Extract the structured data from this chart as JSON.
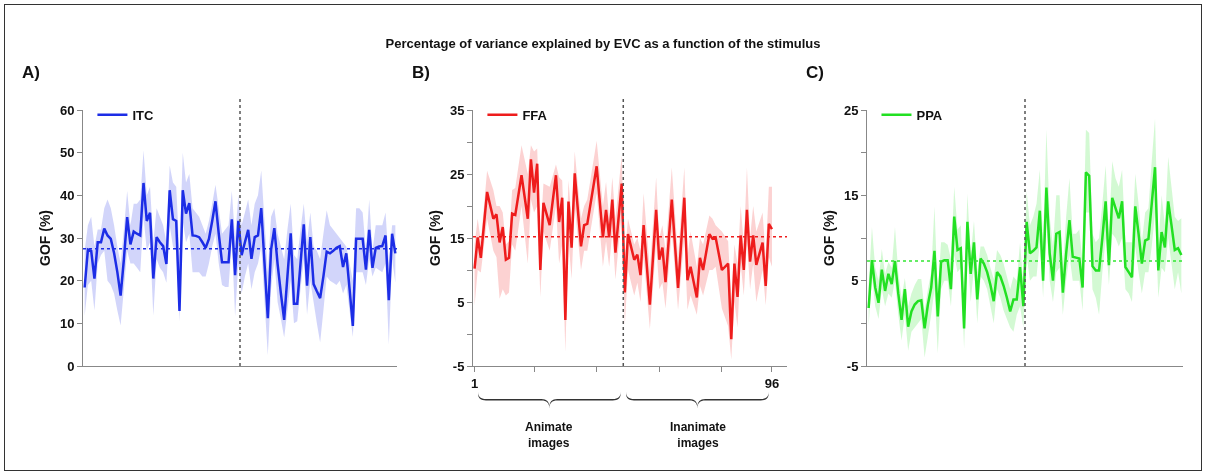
{
  "chart_data": [
    {
      "type": "line",
      "annotations": [
        "A)"
      ],
      "ylabel": "GOF (%)",
      "legend": "top left",
      "tick_labels": "y",
      "categories": [
        null,
        null,
        null,
        null,
        null,
        null,
        null,
        null,
        null,
        null,
        null,
        null,
        null,
        null,
        null,
        null,
        null,
        null,
        null,
        null,
        null,
        null,
        null,
        null,
        null,
        null,
        null,
        null,
        null,
        null,
        null,
        null,
        null,
        null,
        null,
        null,
        null,
        null,
        null,
        null,
        null,
        null,
        null,
        null,
        null,
        null,
        null,
        null,
        null,
        null,
        null,
        null,
        null,
        null,
        null,
        null,
        null,
        null,
        null,
        null,
        null,
        null,
        null,
        null,
        null,
        null,
        null,
        null,
        null,
        null,
        null,
        null,
        null,
        null,
        null,
        null,
        null,
        null,
        null,
        null,
        null,
        null,
        null,
        null,
        null,
        null,
        null,
        null,
        null,
        null,
        null,
        null,
        null,
        null,
        null,
        null
      ],
      "ylim": [
        0,
        60
      ],
      "yticks": [
        0,
        10,
        20,
        30,
        40,
        50,
        60
      ],
      "ref_lines": [
        {
          "axis": "y",
          "value": 27.5,
          "color": "#1c2de6",
          "line_style": "dotted"
        }
      ],
      "series": [
        {
          "name": "ITC",
          "color": "#1c2de6",
          "values": [
            18.4,
            27.3,
            27,
            20.5,
            29,
            29,
            32.2,
            30.6,
            29.8,
            26.5,
            22,
            16.5,
            25,
            34.9,
            28.5,
            31.5,
            31,
            30.6,
            42.9,
            34,
            35.9,
            20.5,
            30.2,
            29,
            28.1,
            23.9,
            41.2,
            34.4,
            34,
            12.9,
            41.2,
            35.7,
            38.2,
            30.6,
            30.5,
            30.2,
            29,
            27.7,
            29.8,
            34,
            38.6,
            31,
            24.3,
            24.3,
            24.3,
            34.4,
            21.3,
            34,
            26,
            29,
            31.9,
            25.1,
            30.2,
            30.6,
            37,
            24,
            11.2,
            27.3,
            32.3,
            23.9,
            17,
            10.8,
            21,
            31.1,
            14.6,
            14.6,
            24,
            33.2,
            18.8,
            30.2,
            19.2,
            17.5,
            15.9,
            21,
            26.8,
            26.4,
            27,
            27.7,
            28.1,
            23.2,
            26.4,
            18,
            9.4,
            29.8,
            29.8,
            29.8,
            22.6,
            31.9,
            23,
            27.7,
            28,
            28.1,
            30.6,
            15.4,
            31,
            26.4
          ],
          "lower": [
            11.7,
            19,
            20,
            13,
            24,
            26,
            27,
            20,
            19,
            17,
            13,
            9.5,
            18,
            27,
            24,
            24,
            23,
            22,
            35,
            27,
            29,
            11.8,
            25,
            23,
            22,
            19.5,
            33,
            28,
            27,
            10.5,
            34,
            29,
            31,
            22,
            22,
            22,
            21,
            21,
            24,
            28,
            31,
            24,
            19,
            18.5,
            18.5,
            29,
            11.6,
            24,
            17,
            21,
            24,
            18,
            22,
            24,
            28,
            15,
            2.5,
            18,
            25,
            15,
            11,
            6.7,
            13,
            20,
            10,
            10.5,
            18,
            25,
            12,
            20,
            15,
            10,
            5.5,
            13,
            21,
            20,
            19.5,
            19,
            20,
            17,
            19,
            13,
            6.8,
            22,
            22,
            22,
            19,
            25,
            21,
            23,
            22.5,
            22,
            24,
            5,
            25,
            19.5
          ],
          "upper": [
            27,
            33,
            35,
            28,
            32,
            32,
            37,
            39,
            37,
            33,
            28,
            24,
            32,
            41,
            33,
            38,
            38,
            39,
            50.5,
            40,
            42,
            29,
            37,
            35,
            33,
            29,
            47,
            43,
            42,
            26,
            50,
            43,
            45,
            37,
            36,
            35,
            33,
            31,
            34,
            38,
            42.5,
            37,
            31,
            32,
            33,
            41,
            30,
            40,
            33,
            36,
            39,
            33,
            38,
            40,
            45.8,
            34,
            22,
            35,
            37,
            31,
            28,
            25,
            32,
            38,
            26,
            25,
            32,
            38,
            29,
            36,
            28,
            27,
            25,
            31,
            36.5,
            33,
            32,
            31,
            30,
            29,
            28,
            24,
            20,
            37,
            37,
            36,
            27,
            39,
            27,
            33,
            33,
            33,
            36,
            24,
            33,
            33
          ]
        }
      ]
    },
    {
      "type": "line",
      "title": "Percentage of variance explained by EVC as a function of the stimulus",
      "annotations": [
        "B)",
        "Animate images",
        "Inanimate images"
      ],
      "ylabel": "GOF (%)",
      "legend": "top left",
      "xlim": [
        0.5,
        100.8
      ],
      "xticks": [
        1,
        {
          "value": 20,
          "label": null
        },
        {
          "value": 40,
          "label": null
        },
        {
          "value": 60,
          "label": null
        },
        {
          "value": 80,
          "label": null
        },
        96
      ],
      "ylim": [
        -5,
        35
      ],
      "yticks": [
        -5,
        {
          "value": 0,
          "label": null
        },
        5,
        {
          "value": 10,
          "label": null
        },
        15,
        {
          "value": 20,
          "label": null
        },
        25,
        {
          "value": 30,
          "label": null
        },
        35
      ],
      "ref_lines": [
        {
          "axis": "y",
          "value": 15.2,
          "color": "#ee1c1c",
          "line_style": "dotted"
        },
        {
          "axis": "x",
          "value": 48.5,
          "color": "#555555",
          "line_style": "dotted"
        }
      ],
      "series": [
        {
          "name": "FFA",
          "color": "#ee1c1c",
          "x": [
            1,
            2,
            3,
            5,
            7,
            8,
            9,
            10,
            11,
            12,
            13,
            14,
            16,
            18,
            19,
            20,
            21,
            22,
            23,
            25,
            27,
            28,
            29,
            30,
            31,
            32,
            33,
            35,
            36,
            37,
            40,
            42,
            43,
            44,
            45,
            46,
            48,
            49,
            50,
            52,
            53,
            54,
            55,
            57,
            59,
            60,
            61,
            62,
            64,
            66,
            68,
            69,
            70,
            72,
            73,
            74,
            76,
            77,
            78,
            80,
            82,
            83,
            84,
            85,
            86,
            87,
            88,
            89,
            90,
            91,
            93,
            94,
            95,
            96
          ],
          "values": [
            10.2,
            15.1,
            11.9,
            22.2,
            18,
            18.7,
            14.3,
            16.7,
            11.6,
            11.9,
            18.8,
            18.6,
            24.8,
            18,
            27.3,
            22.1,
            26.6,
            10,
            20.5,
            17,
            24.8,
            17.5,
            21.3,
            2.2,
            20.7,
            13.5,
            25.1,
            13.7,
            17,
            17.2,
            26.2,
            15.1,
            19.4,
            15.1,
            21,
            12.7,
            23.5,
            6.5,
            15.6,
            11.6,
            12.4,
            9.2,
            17,
            4.6,
            19.4,
            11.6,
            13.5,
            8.1,
            21,
            7.2,
            21.3,
            8.4,
            10.5,
            5.7,
            11.9,
            10,
            15.6,
            14.9,
            15.1,
            10,
            11,
            -0.8,
            11,
            5.8,
            15.4,
            10,
            19.4,
            11.3,
            15.4,
            10.8,
            14.3,
            7.5,
            17.2,
            16.4
          ],
          "lower": [
            4.4,
            10,
            9.6,
            18,
            13,
            12,
            5.5,
            7,
            6,
            6.5,
            14,
            13,
            20,
            11,
            21,
            19,
            20,
            5.8,
            16,
            13,
            20,
            11,
            14,
            -2.8,
            14.5,
            8.6,
            20,
            10,
            13,
            13,
            22,
            10.5,
            14.5,
            10.5,
            16,
            8.5,
            19,
            1.4,
            10,
            6,
            8,
            5,
            12,
            0.8,
            14,
            7,
            8,
            4,
            16,
            3.8,
            15,
            3.8,
            6,
            3,
            7.5,
            6,
            10,
            10,
            10.5,
            4,
            1.2,
            -4,
            5,
            1,
            11,
            6,
            14.5,
            7,
            11,
            5,
            10,
            4.5,
            12,
            10.5
          ],
          "upper": [
            14,
            18,
            14.5,
            25.5,
            22.5,
            20,
            20,
            19,
            14,
            14.5,
            22.5,
            22.8,
            29.5,
            25,
            29.5,
            28.5,
            29,
            15,
            23.5,
            23,
            26.5,
            24.5,
            24,
            10,
            24,
            18,
            28.5,
            18,
            20,
            21,
            30.2,
            20,
            23.8,
            18,
            24.5,
            18,
            27.9,
            12,
            18,
            14,
            15,
            13,
            22,
            10,
            24.5,
            15,
            17,
            13,
            26,
            12,
            26,
            12,
            16,
            10.5,
            15,
            14,
            18.5,
            18,
            17,
            16,
            14.5,
            5,
            14,
            11,
            20,
            14,
            26,
            15,
            20,
            16,
            19,
            12,
            23,
            23
          ]
        }
      ]
    },
    {
      "type": "line",
      "annotations": [
        "C)"
      ],
      "ylabel": "GOF (%)",
      "legend": "top left",
      "tick_labels": "y",
      "categories": [
        null,
        null,
        null,
        null,
        null,
        null,
        null,
        null,
        null,
        null,
        null,
        null,
        null,
        null,
        null,
        null,
        null,
        null,
        null,
        null,
        null,
        null,
        null,
        null,
        null,
        null,
        null,
        null,
        null,
        null,
        null,
        null,
        null,
        null,
        null,
        null,
        null,
        null,
        null,
        null,
        null,
        null,
        null,
        null,
        null,
        null,
        null,
        null,
        null,
        null,
        null,
        null,
        null,
        null,
        null,
        null,
        null,
        null,
        null,
        null,
        null,
        null,
        null,
        null,
        null,
        null,
        null,
        null,
        null,
        null,
        null,
        null,
        null,
        null,
        null,
        null,
        null,
        null,
        null,
        null,
        null,
        null,
        null,
        null,
        null,
        null,
        null,
        null,
        null,
        null,
        null,
        null,
        null,
        null,
        null,
        null
      ],
      "ylim": [
        -5,
        25
      ],
      "yticks": [
        -5,
        {
          "value": 0,
          "label": null
        },
        5,
        {
          "value": 10,
          "label": null
        },
        15,
        {
          "value": 20,
          "label": null
        },
        25
      ],
      "ref_lines": [
        {
          "axis": "y",
          "value": 7.3,
          "color": "#33e633",
          "line_style": "dotted"
        }
      ],
      "series": [
        {
          "name": "PPA",
          "color": "#22e022",
          "values": [
            1.8,
            7.4,
            4.2,
            2.4,
            6.3,
            3.8,
            5.8,
            4.6,
            7.3,
            3.5,
            0.4,
            4,
            -0.4,
            1.4,
            2.2,
            2.6,
            2.7,
            -0.6,
            2.2,
            4.2,
            8.5,
            0.8,
            7.2,
            7.4,
            7.4,
            4,
            12.5,
            8.6,
            8.8,
            -0.6,
            11.9,
            5.8,
            9.5,
            2.8,
            7.6,
            7,
            6,
            4.5,
            2.6,
            6,
            5.5,
            4.4,
            3,
            1.4,
            2.8,
            2.8,
            6.6,
            2,
            11.9,
            8.2,
            8.5,
            8.9,
            13.2,
            5,
            15.9,
            8.2,
            5,
            10.5,
            10.7,
            3.6,
            8.2,
            12.1,
            7.8,
            7.7,
            7.6,
            4.2,
            17.7,
            17.3,
            6.7,
            6.2,
            6.2,
            10,
            14.3,
            6.8,
            14.7,
            13.5,
            12.3,
            14.3,
            6.6,
            6,
            5.4,
            13.7,
            10.5,
            7,
            9.7,
            9.9,
            14,
            18.3,
            6.2,
            10.7,
            8.9,
            14.3,
            11.5,
            8.6,
            8.8,
            8
          ],
          "lower": [
            -0.3,
            5.5,
            2,
            0.5,
            4,
            2,
            3.5,
            3,
            5,
            1,
            -2,
            1,
            -3.2,
            -1,
            -0.5,
            0,
            0.5,
            -4,
            -1.5,
            1,
            4,
            -3.5,
            4,
            5,
            5,
            2,
            8,
            6,
            6.5,
            -3,
            8.5,
            2.5,
            6.5,
            0,
            5.5,
            5,
            4,
            2,
            0,
            4,
            3,
            1.5,
            0.5,
            -0.5,
            -1,
            1,
            2,
            -0.5,
            8,
            5,
            5.5,
            5.5,
            9.5,
            3,
            12,
            5,
            2.5,
            6,
            6.5,
            1,
            5,
            8,
            5,
            5,
            5,
            1.5,
            13,
            13,
            4,
            3,
            1,
            6,
            10,
            4.5,
            10.5,
            10,
            9,
            10,
            4,
            3.5,
            2.5,
            9,
            6,
            3.5,
            6,
            6,
            9,
            13,
            3,
            6.5,
            6,
            10,
            7,
            4,
            6,
            3.5
          ],
          "upper": [
            4.5,
            11.3,
            6.5,
            5,
            8.7,
            5.8,
            7.2,
            6.5,
            11.3,
            6,
            3,
            5.3,
            2,
            3.5,
            4.5,
            5.2,
            5.2,
            1.5,
            4,
            6,
            13.7,
            3.5,
            9.5,
            9.5,
            9.2,
            7.5,
            16,
            11,
            11.5,
            2.5,
            15.2,
            8,
            12,
            6,
            9,
            9,
            8,
            6.5,
            5.2,
            8.6,
            8,
            7,
            5.5,
            4,
            5.5,
            5,
            9.5,
            4.5,
            15.5,
            11.5,
            12.5,
            14,
            18,
            9.5,
            22.7,
            12.5,
            9,
            15,
            15,
            6.5,
            12.5,
            17,
            10.5,
            10.5,
            11,
            7,
            22.7,
            22.3,
            10.5,
            9.5,
            10,
            14,
            18.5,
            10.5,
            19,
            17,
            16,
            18,
            9.5,
            9.5,
            9.5,
            17.5,
            14,
            9.5,
            13,
            13.5,
            19,
            24,
            9,
            15,
            11.5,
            19.5,
            16,
            12.5,
            12,
            12.3
          ]
        }
      ]
    }
  ]
}
